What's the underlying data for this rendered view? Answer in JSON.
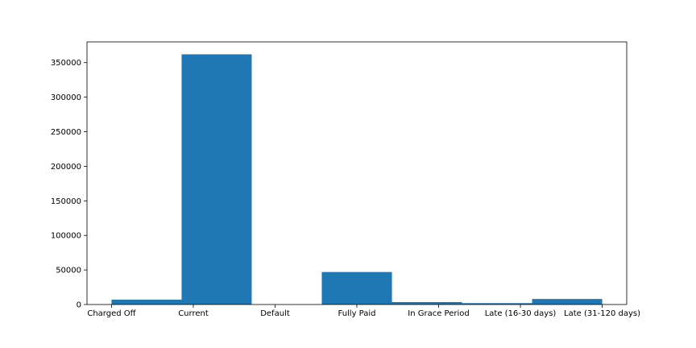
{
  "chart_data": {
    "type": "bar",
    "title": "",
    "xlabel": "",
    "ylabel": "",
    "categories": [
      "Charged Off",
      "Current",
      "Default",
      "Fully Paid",
      "In Grace Period",
      "Late (16-30 days)",
      "Late (31-120 days)"
    ],
    "bin_values": [
      7000,
      362000,
      0,
      47000,
      3500,
      2000,
      8000
    ],
    "bin_edges": [
      0,
      0.857,
      1.714,
      2.571,
      3.429,
      4.286,
      5.143,
      6.0
    ],
    "xlim": [
      -0.3,
      6.3
    ],
    "ylim": [
      0,
      380000
    ],
    "yticks": [
      0,
      50000,
      100000,
      150000,
      200000,
      250000,
      300000,
      350000
    ],
    "grid": false,
    "bar_color": "#1f77b4"
  }
}
